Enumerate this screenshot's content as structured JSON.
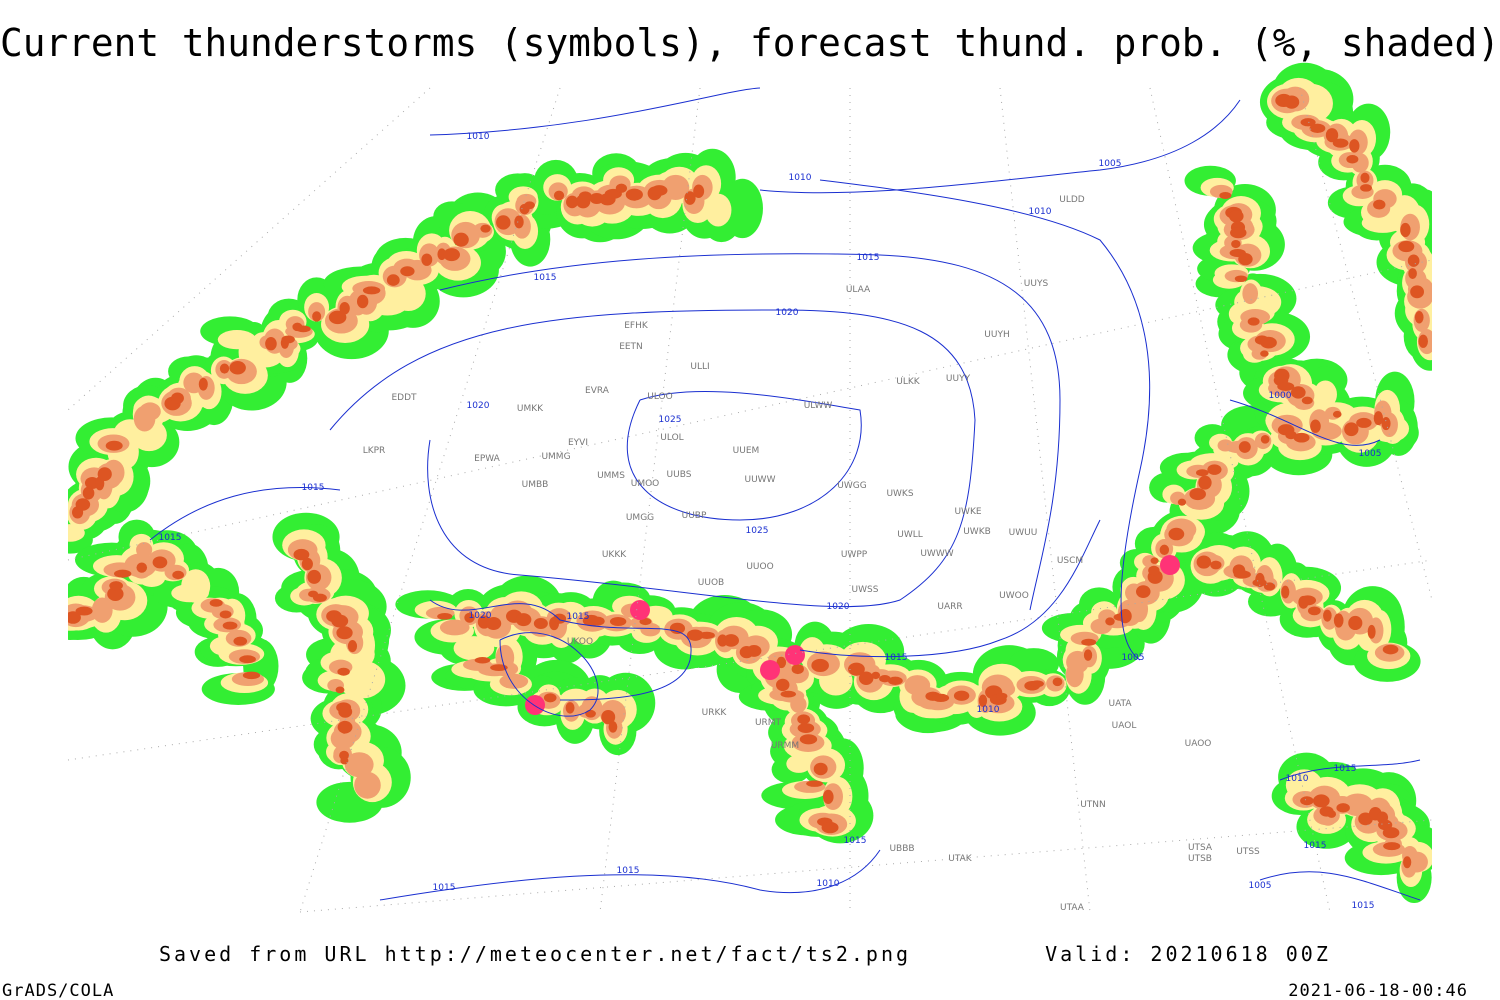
{
  "header": {
    "title": "Current thunderstorms (symbols), forecast thund. prob. (%, shaded)"
  },
  "map": {
    "isobar_labels": [
      "1010",
      "1010",
      "1005",
      "1010",
      "1015",
      "1015",
      "1020",
      "1020",
      "1025",
      "1025",
      "1015",
      "1015",
      "1020",
      "1015",
      "1020",
      "1015",
      "1005",
      "1010",
      "1000",
      "1005",
      "1015",
      "1010",
      "1015",
      "1015",
      "1010",
      "1015",
      "1015",
      "1005",
      "1015"
    ],
    "stations": [
      "ULDD",
      "ULAA",
      "UUYS",
      "UUYH",
      "EFHK",
      "EETN",
      "ULLI",
      "EVRA",
      "ULOO",
      "EDDT",
      "UMKK",
      "ULKK",
      "UUYY",
      "ULWW",
      "ULOL",
      "UUEM",
      "EYVI",
      "LKPR",
      "EPWA",
      "UMMG",
      "UMMS",
      "UUBS",
      "UUWW",
      "UMOO",
      "UWGG",
      "UWKS",
      "UMBB",
      "UWKE",
      "UUBP",
      "UMGG",
      "UWKB",
      "UWUU",
      "UWLL",
      "UWWW",
      "UWPP",
      "UKKK",
      "UUOO",
      "UUOB",
      "UWSS",
      "USCM",
      "UARR",
      "UWOO",
      "UKOO",
      "URKK",
      "URMT",
      "URMM",
      "UATA",
      "UAOL",
      "UAOO",
      "UTNN",
      "UBBB",
      "UTAK",
      "UTSA",
      "UTSB",
      "UTSS",
      "UTAA"
    ]
  },
  "footer": {
    "source": "Saved from URL http://meteocenter.net/fact/ts2.png",
    "valid": "Valid: 20210618 00Z",
    "software": "GrADS/COLA",
    "timestamp": "2021-06-18-00:46"
  }
}
